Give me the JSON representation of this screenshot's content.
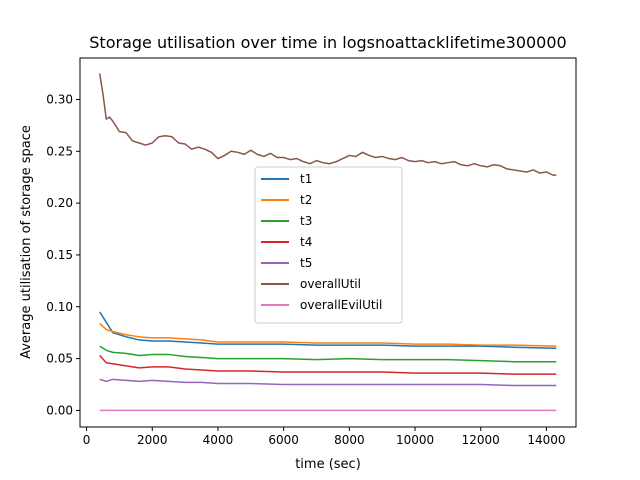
{
  "chart_data": {
    "type": "line",
    "title": "Storage utilisation over time in logsnoattacklifetime300000",
    "xlabel": "time (sec)",
    "ylabel": "Average utilisation of storage space",
    "xlim": [
      -200,
      14900
    ],
    "ylim": [
      -0.016,
      0.34
    ],
    "xticks": [
      0,
      2000,
      4000,
      6000,
      8000,
      10000,
      12000,
      14000
    ],
    "xtick_labels": [
      "0",
      "2000",
      "4000",
      "6000",
      "8000",
      "10000",
      "12000",
      "14000"
    ],
    "yticks": [
      0.0,
      0.05,
      0.1,
      0.15,
      0.2,
      0.25,
      0.3
    ],
    "ytick_labels": [
      "0.00",
      "0.05",
      "0.10",
      "0.15",
      "0.20",
      "0.25",
      "0.30"
    ],
    "grid": false,
    "legend_position": "center",
    "series": [
      {
        "name": "t1",
        "color": "#1f77b4",
        "x": [
          400,
          600,
          800,
          1200,
          1600,
          2000,
          2500,
          3000,
          3500,
          4000,
          5000,
          6000,
          7000,
          8000,
          9000,
          10000,
          11000,
          12000,
          13000,
          14300
        ],
        "y": [
          0.095,
          0.085,
          0.075,
          0.071,
          0.068,
          0.067,
          0.067,
          0.066,
          0.065,
          0.064,
          0.064,
          0.064,
          0.063,
          0.063,
          0.063,
          0.062,
          0.062,
          0.062,
          0.061,
          0.06
        ]
      },
      {
        "name": "t2",
        "color": "#ff7f0e",
        "x": [
          400,
          600,
          800,
          1200,
          1600,
          2000,
          2500,
          3000,
          3500,
          4000,
          5000,
          6000,
          7000,
          8000,
          9000,
          10000,
          11000,
          12000,
          13000,
          14300
        ],
        "y": [
          0.084,
          0.078,
          0.076,
          0.073,
          0.071,
          0.07,
          0.07,
          0.069,
          0.068,
          0.066,
          0.066,
          0.066,
          0.065,
          0.065,
          0.065,
          0.064,
          0.064,
          0.063,
          0.063,
          0.062
        ]
      },
      {
        "name": "t3",
        "color": "#2ca02c",
        "x": [
          400,
          600,
          800,
          1200,
          1600,
          2000,
          2500,
          3000,
          3500,
          4000,
          5000,
          6000,
          7000,
          8000,
          9000,
          10000,
          11000,
          12000,
          13000,
          14300
        ],
        "y": [
          0.062,
          0.058,
          0.056,
          0.055,
          0.053,
          0.054,
          0.054,
          0.052,
          0.051,
          0.05,
          0.05,
          0.05,
          0.049,
          0.05,
          0.049,
          0.049,
          0.049,
          0.048,
          0.047,
          0.047
        ]
      },
      {
        "name": "t4",
        "color": "#d62728",
        "x": [
          400,
          600,
          800,
          1200,
          1600,
          2000,
          2500,
          3000,
          3500,
          4000,
          5000,
          6000,
          7000,
          8000,
          9000,
          10000,
          11000,
          12000,
          13000,
          14300
        ],
        "y": [
          0.053,
          0.046,
          0.045,
          0.043,
          0.041,
          0.042,
          0.042,
          0.04,
          0.039,
          0.038,
          0.038,
          0.037,
          0.037,
          0.037,
          0.037,
          0.036,
          0.036,
          0.036,
          0.035,
          0.035
        ]
      },
      {
        "name": "t5",
        "color": "#9467bd",
        "x": [
          400,
          600,
          800,
          1200,
          1600,
          2000,
          2500,
          3000,
          3500,
          4000,
          5000,
          6000,
          7000,
          8000,
          9000,
          10000,
          11000,
          12000,
          13000,
          14300
        ],
        "y": [
          0.03,
          0.028,
          0.03,
          0.029,
          0.028,
          0.029,
          0.028,
          0.027,
          0.027,
          0.026,
          0.026,
          0.025,
          0.025,
          0.025,
          0.025,
          0.025,
          0.025,
          0.025,
          0.024,
          0.024
        ]
      },
      {
        "name": "overallUtil",
        "color": "#8c564b",
        "x": [
          400,
          500,
          600,
          700,
          800,
          1000,
          1200,
          1400,
          1600,
          1800,
          2000,
          2200,
          2400,
          2600,
          2800,
          3000,
          3200,
          3400,
          3600,
          3800,
          4000,
          4200,
          4400,
          4600,
          4800,
          5000,
          5200,
          5400,
          5600,
          5800,
          6000,
          6200,
          6400,
          6600,
          6800,
          7000,
          7200,
          7400,
          7600,
          7800,
          8000,
          8200,
          8400,
          8600,
          8800,
          9000,
          9200,
          9400,
          9600,
          9800,
          10000,
          10200,
          10400,
          10600,
          10800,
          11000,
          11200,
          11400,
          11600,
          11800,
          12000,
          12200,
          12400,
          12600,
          12800,
          13000,
          13200,
          13400,
          13600,
          13800,
          14000,
          14200,
          14300
        ],
        "y": [
          0.325,
          0.305,
          0.281,
          0.283,
          0.279,
          0.269,
          0.268,
          0.26,
          0.258,
          0.256,
          0.258,
          0.264,
          0.265,
          0.264,
          0.258,
          0.257,
          0.252,
          0.254,
          0.252,
          0.249,
          0.243,
          0.246,
          0.25,
          0.249,
          0.247,
          0.251,
          0.247,
          0.245,
          0.248,
          0.244,
          0.244,
          0.242,
          0.243,
          0.24,
          0.238,
          0.241,
          0.239,
          0.238,
          0.24,
          0.243,
          0.246,
          0.245,
          0.249,
          0.246,
          0.244,
          0.245,
          0.243,
          0.242,
          0.244,
          0.241,
          0.24,
          0.241,
          0.239,
          0.24,
          0.238,
          0.239,
          0.24,
          0.237,
          0.236,
          0.238,
          0.236,
          0.235,
          0.237,
          0.236,
          0.233,
          0.232,
          0.231,
          0.23,
          0.232,
          0.229,
          0.23,
          0.227,
          0.227
        ]
      },
      {
        "name": "overallEvilUtil",
        "color": "#e377c2",
        "x": [
          400,
          14300
        ],
        "y": [
          0.0,
          0.0
        ]
      }
    ]
  }
}
